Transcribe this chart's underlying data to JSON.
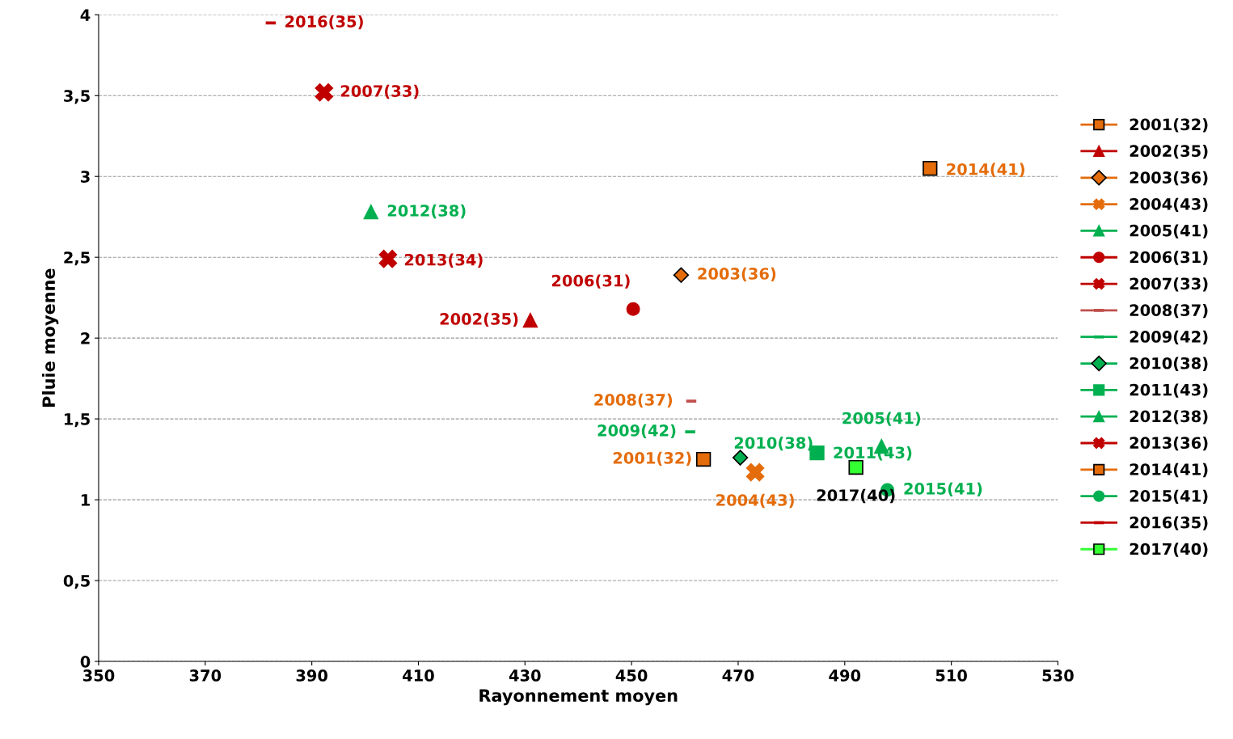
{
  "chart_data": {
    "type": "scatter",
    "xlabel": "Rayonnement moyen",
    "ylabel": "Pluie moyenne",
    "xlim": [
      350,
      530
    ],
    "xticks": [
      350,
      370,
      390,
      410,
      430,
      450,
      470,
      490,
      510,
      530
    ],
    "ylim": [
      0,
      4
    ],
    "yticks": [
      {
        "value": 0,
        "label": "0"
      },
      {
        "value": 0.5,
        "label": "0,5"
      },
      {
        "value": 1,
        "label": "1"
      },
      {
        "value": 1.5,
        "label": "1,5"
      },
      {
        "value": 2,
        "label": "2"
      },
      {
        "value": 2.5,
        "label": "2,5"
      },
      {
        "value": 3,
        "label": "3"
      },
      {
        "value": 3.5,
        "label": "3,5"
      },
      {
        "value": 4,
        "label": "4"
      }
    ],
    "grid": "y",
    "legend": "right",
    "series": [
      {
        "name": "2001(32)",
        "color": "#e46c0a",
        "marker": "square",
        "x": [
          463.5
        ],
        "values": [
          1.25
        ]
      },
      {
        "name": "2002(35)",
        "color": "#c00000",
        "marker": "triangle",
        "x": [
          431
        ],
        "values": [
          2.11
        ]
      },
      {
        "name": "2003(36)",
        "color": "#e46c0a",
        "marker": "diamond",
        "x": [
          459.3
        ],
        "values": [
          2.39
        ]
      },
      {
        "name": "2004(43)",
        "color": "#e46c0a",
        "marker": "cross",
        "x": [
          473.2
        ],
        "values": [
          1.17
        ]
      },
      {
        "name": "2005(41)",
        "color": "#00b050",
        "marker": "triangle",
        "x": [
          496.9
        ],
        "values": [
          1.33
        ]
      },
      {
        "name": "2006(31)",
        "color": "#c00000",
        "marker": "circle",
        "x": [
          450.3
        ],
        "values": [
          2.18
        ]
      },
      {
        "name": "2007(33)",
        "color": "#c00000",
        "marker": "cross",
        "x": [
          392.3
        ],
        "values": [
          3.52
        ]
      },
      {
        "name": "2008(37)",
        "color": "#c0504d",
        "x": [
          461.2
        ],
        "values": [
          1.61
        ]
      },
      {
        "name": "2009(42)",
        "color": "#00b050",
        "x": [
          461
        ],
        "values": [
          1.42
        ]
      },
      {
        "name": "2010(38)",
        "color": "#00b050",
        "marker": "diamond",
        "x": [
          470.4
        ],
        "values": [
          1.26
        ]
      },
      {
        "name": "2011(43)",
        "color": "#00b050",
        "marker": "square",
        "x": [
          484.8
        ],
        "values": [
          1.29
        ]
      },
      {
        "name": "2012(38)",
        "color": "#00b050",
        "marker": "triangle",
        "x": [
          401.1
        ],
        "values": [
          2.78
        ]
      },
      {
        "name": "2013(36)",
        "color": "#c00000",
        "marker": "cross",
        "x": [
          404.3
        ],
        "values": [
          2.49
        ]
      },
      {
        "name": "2014(41)",
        "color": "#e46c0a",
        "marker": "square",
        "x": [
          506
        ],
        "values": [
          3.05
        ]
      },
      {
        "name": "2015(41)",
        "color": "#00b050",
        "marker": "circle",
        "x": [
          498
        ],
        "values": [
          1.06
        ]
      },
      {
        "name": "2016(35)",
        "color": "#c00000",
        "x": [
          382.3
        ],
        "values": [
          3.95
        ]
      },
      {
        "name": "2017(40)",
        "color": "#33ff33",
        "marker": "square",
        "x": [
          492.1
        ],
        "values": [
          1.2
        ]
      }
    ],
    "annotations": [
      {
        "text": "2001(32)",
        "x": 463.5,
        "y": 1.25
      },
      {
        "text": "2002(35)",
        "x": 431,
        "y": 2.11
      },
      {
        "text": "2003(36)",
        "x": 459.3,
        "y": 2.39
      },
      {
        "text": "2004(43)",
        "x": 473.2,
        "y": 1.17
      },
      {
        "text": "2005(41)",
        "x": 496.9,
        "y": 1.33
      },
      {
        "text": "2006(31)",
        "x": 450.3,
        "y": 2.18
      },
      {
        "text": "2007(33)",
        "x": 392.3,
        "y": 3.52
      },
      {
        "text": "2008(37)",
        "x": 461.2,
        "y": 1.61
      },
      {
        "text": "2009(42)",
        "x": 461,
        "y": 1.42
      },
      {
        "text": "2010(38)",
        "x": 470.4,
        "y": 1.26
      },
      {
        "text": "2011(43)",
        "x": 484.8,
        "y": 1.29
      },
      {
        "text": "2012(38)",
        "x": 401.1,
        "y": 2.78
      },
      {
        "text": "2013(34)",
        "x": 404.3,
        "y": 2.49
      },
      {
        "text": "2014(41)",
        "x": 506,
        "y": 3.05
      },
      {
        "text": "2015(41)",
        "x": 498,
        "y": 1.06
      },
      {
        "text": "2016(35)",
        "x": 382.3,
        "y": 3.95
      },
      {
        "text": "2017(40)",
        "x": 492.1,
        "y": 1.2
      }
    ]
  }
}
